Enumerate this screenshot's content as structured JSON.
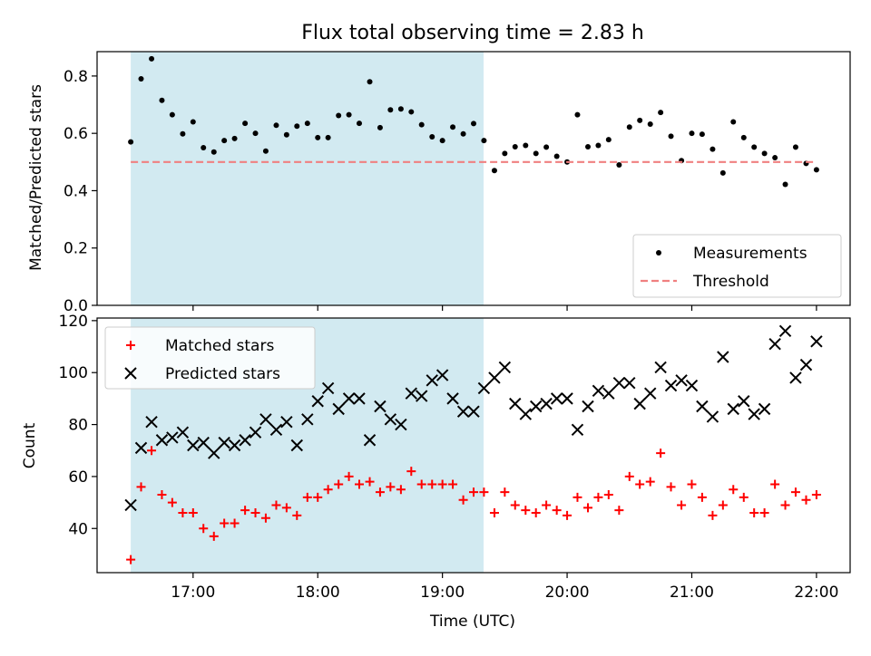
{
  "title": "Flux total observing time = 2.83 h",
  "shade_color": "#add8e6",
  "chart_data": [
    {
      "type": "scatter",
      "ylabel": "Matched/Predicted stars",
      "xlim": [
        16.23,
        22.27
      ],
      "ylim": [
        0,
        0.885
      ],
      "y_ticks": [
        0.0,
        0.2,
        0.4,
        0.6,
        0.8
      ],
      "y_tick_labels": [
        "0.0",
        "0.2",
        "0.4",
        "0.6",
        "0.8"
      ],
      "shaded_x_range": [
        16.5,
        19.33
      ],
      "legend_position": "lower right",
      "series": [
        {
          "name": "Measurements",
          "color": "#000000",
          "marker": "dot",
          "x": [
            16.5,
            16.583,
            16.667,
            16.75,
            16.833,
            16.917,
            17.0,
            17.083,
            17.167,
            17.25,
            17.333,
            17.417,
            17.5,
            17.583,
            17.667,
            17.75,
            17.833,
            17.917,
            18.0,
            18.083,
            18.167,
            18.25,
            18.333,
            18.417,
            18.5,
            18.583,
            18.667,
            18.75,
            18.833,
            18.917,
            19.0,
            19.083,
            19.167,
            19.25,
            19.333,
            19.417,
            19.5,
            19.583,
            19.667,
            19.75,
            19.833,
            19.917,
            20.0,
            20.083,
            20.167,
            20.25,
            20.333,
            20.417,
            20.5,
            20.583,
            20.667,
            20.75,
            20.833,
            20.917,
            21.0,
            21.083,
            21.167,
            21.25,
            21.333,
            21.417,
            21.5,
            21.583,
            21.667,
            21.75,
            21.833,
            21.917,
            22.0
          ],
          "y": [
            0.57,
            0.79,
            0.86,
            0.715,
            0.665,
            0.598,
            0.64,
            0.55,
            0.535,
            0.575,
            0.582,
            0.635,
            0.6,
            0.538,
            0.628,
            0.595,
            0.625,
            0.635,
            0.585,
            0.585,
            0.662,
            0.665,
            0.635,
            0.78,
            0.62,
            0.682,
            0.685,
            0.675,
            0.63,
            0.588,
            0.575,
            0.622,
            0.598,
            0.634,
            0.575,
            0.47,
            0.53,
            0.553,
            0.558,
            0.53,
            0.552,
            0.52,
            0.5,
            0.665,
            0.553,
            0.558,
            0.578,
            0.49,
            0.622,
            0.645,
            0.632,
            0.673,
            0.59,
            0.505,
            0.6,
            0.597,
            0.545,
            0.462,
            0.64,
            0.585,
            0.552,
            0.53,
            0.515,
            0.422,
            0.552,
            0.495,
            0.473
          ]
        },
        {
          "name": "Threshold",
          "color": "#f08080",
          "style": "dashed",
          "x": [
            16.5,
            22.0
          ],
          "y": [
            0.5,
            0.5
          ]
        }
      ]
    },
    {
      "type": "scatter",
      "xlabel": "Time (UTC)",
      "ylabel": "Count",
      "xlim": [
        16.23,
        22.27
      ],
      "ylim": [
        23,
        121
      ],
      "x_ticks": [
        17,
        18,
        19,
        20,
        21,
        22
      ],
      "x_tick_labels": [
        "17:00",
        "18:00",
        "19:00",
        "20:00",
        "21:00",
        "22:00"
      ],
      "y_ticks": [
        40,
        60,
        80,
        100,
        120
      ],
      "y_tick_labels": [
        "40",
        "60",
        "80",
        "100",
        "120"
      ],
      "shaded_x_range": [
        16.5,
        19.33
      ],
      "legend_position": "upper left",
      "series": [
        {
          "name": "Matched stars",
          "color": "#ff0000",
          "marker": "plus",
          "x": [
            16.5,
            16.583,
            16.667,
            16.75,
            16.833,
            16.917,
            17.0,
            17.083,
            17.167,
            17.25,
            17.333,
            17.417,
            17.5,
            17.583,
            17.667,
            17.75,
            17.833,
            17.917,
            18.0,
            18.083,
            18.167,
            18.25,
            18.333,
            18.417,
            18.5,
            18.583,
            18.667,
            18.75,
            18.833,
            18.917,
            19.0,
            19.083,
            19.167,
            19.25,
            19.333,
            19.417,
            19.5,
            19.583,
            19.667,
            19.75,
            19.833,
            19.917,
            20.0,
            20.083,
            20.167,
            20.25,
            20.333,
            20.417,
            20.5,
            20.583,
            20.667,
            20.75,
            20.833,
            20.917,
            21.0,
            21.083,
            21.167,
            21.25,
            21.333,
            21.417,
            21.5,
            21.583,
            21.667,
            21.75,
            21.833,
            21.917,
            22.0
          ],
          "y": [
            28,
            56,
            70,
            53,
            50,
            46,
            46,
            40,
            37,
            42,
            42,
            47,
            46,
            44,
            49,
            48,
            45,
            52,
            52,
            55,
            57,
            60,
            57,
            58,
            54,
            56,
            55,
            62,
            57,
            57,
            57,
            57,
            51,
            54,
            54,
            46,
            54,
            49,
            47,
            46,
            49,
            47,
            45,
            52,
            48,
            52,
            53,
            47,
            60,
            57,
            58,
            69,
            56,
            49,
            57,
            52,
            45,
            49,
            55,
            52,
            46,
            46,
            57,
            49,
            54,
            51,
            53
          ]
        },
        {
          "name": "Predicted stars",
          "color": "#000000",
          "marker": "x",
          "x": [
            16.5,
            16.583,
            16.667,
            16.75,
            16.833,
            16.917,
            17.0,
            17.083,
            17.167,
            17.25,
            17.333,
            17.417,
            17.5,
            17.583,
            17.667,
            17.75,
            17.833,
            17.917,
            18.0,
            18.083,
            18.167,
            18.25,
            18.333,
            18.417,
            18.5,
            18.583,
            18.667,
            18.75,
            18.833,
            18.917,
            19.0,
            19.083,
            19.167,
            19.25,
            19.333,
            19.417,
            19.5,
            19.583,
            19.667,
            19.75,
            19.833,
            19.917,
            20.0,
            20.083,
            20.167,
            20.25,
            20.333,
            20.417,
            20.5,
            20.583,
            20.667,
            20.75,
            20.833,
            20.917,
            21.0,
            21.083,
            21.167,
            21.25,
            21.333,
            21.417,
            21.5,
            21.583,
            21.667,
            21.75,
            21.833,
            21.917,
            22.0
          ],
          "y": [
            49,
            71,
            81,
            74,
            75,
            77,
            72,
            73,
            69,
            73,
            72,
            74,
            77,
            82,
            78,
            81,
            72,
            82,
            89,
            94,
            86,
            90,
            90,
            74,
            87,
            82,
            80,
            92,
            91,
            97,
            99,
            90,
            85,
            85,
            94,
            98,
            102,
            88,
            84,
            87,
            88,
            90,
            90,
            78,
            87,
            93,
            92,
            96,
            96,
            88,
            92,
            102,
            95,
            97,
            95,
            87,
            83,
            106,
            86,
            89,
            84,
            86,
            111,
            116,
            98,
            103,
            112
          ]
        }
      ]
    }
  ]
}
